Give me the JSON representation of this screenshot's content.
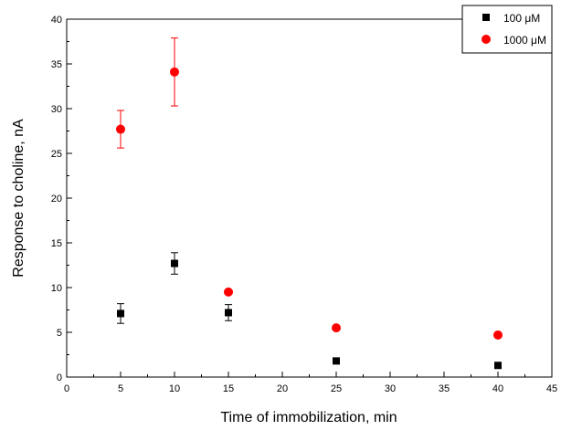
{
  "chart_data": {
    "type": "scatter",
    "title": "",
    "xlabel": "Time of immobilization, min",
    "ylabel": "Response to choline, nA",
    "xlim": [
      0,
      45
    ],
    "ylim": [
      0,
      40
    ],
    "xticks": [
      "0",
      "5",
      "10",
      "15",
      "20",
      "25",
      "30",
      "35",
      "40",
      "45"
    ],
    "yticks": [
      "0",
      "5",
      "10",
      "15",
      "20",
      "25",
      "30",
      "35",
      "40"
    ],
    "grid": false,
    "legend_position": "top-right",
    "series": [
      {
        "name": "100 μM",
        "marker": "square",
        "color": "#000000",
        "points": [
          {
            "x": 5,
            "y": 7.1,
            "err": 1.1
          },
          {
            "x": 10,
            "y": 12.7,
            "err": 1.2
          },
          {
            "x": 15,
            "y": 7.2,
            "err": 0.9
          },
          {
            "x": 25,
            "y": 1.8,
            "err": 0
          },
          {
            "x": 40,
            "y": 1.3,
            "err": 0
          }
        ]
      },
      {
        "name": "1000 μM",
        "marker": "circle",
        "color": "#ff0000",
        "points": [
          {
            "x": 5,
            "y": 27.7,
            "err": 2.1
          },
          {
            "x": 10,
            "y": 34.1,
            "err": 3.8
          },
          {
            "x": 15,
            "y": 9.5,
            "err": 0
          },
          {
            "x": 25,
            "y": 5.5,
            "err": 0
          },
          {
            "x": 40,
            "y": 4.7,
            "err": 0
          }
        ]
      }
    ]
  }
}
